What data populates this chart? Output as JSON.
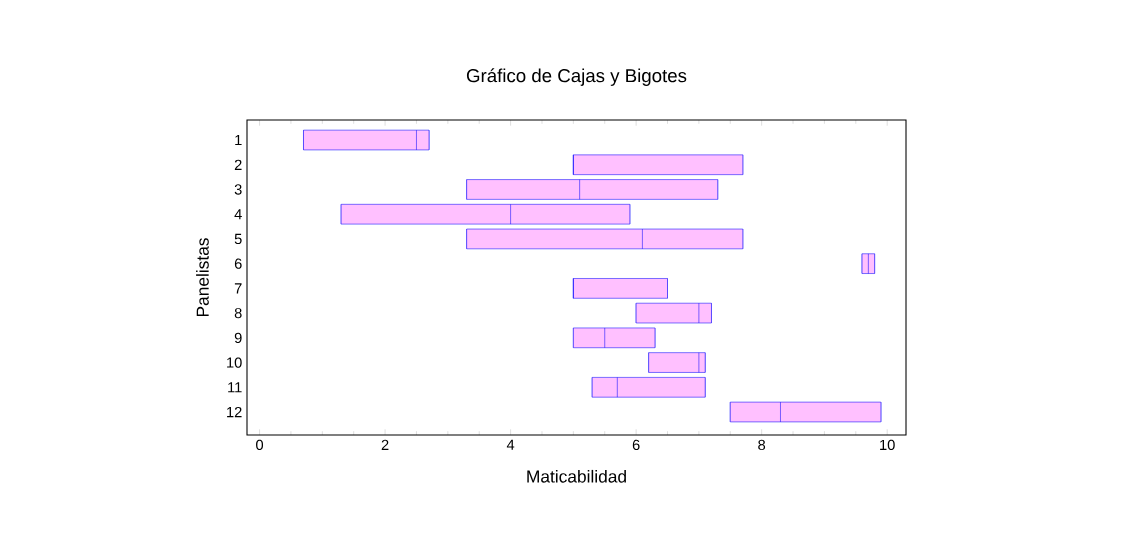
{
  "chart_data": {
    "type": "box",
    "orientation": "horizontal",
    "title": "Gráfico de Cajas y Bigotes",
    "xlabel": "Maticabilidad",
    "ylabel": "Panelistas",
    "categories": [
      "1",
      "2",
      "3",
      "4",
      "5",
      "6",
      "7",
      "8",
      "9",
      "10",
      "11",
      "12"
    ],
    "xlim": [
      -0.2,
      10.3
    ],
    "xticks": [
      0,
      2,
      4,
      6,
      8,
      10
    ],
    "grid": false,
    "series": [
      {
        "color": "#ffc0ff",
        "boxes": [
          {
            "low": 0.7,
            "q1": 0.7,
            "median": 2.5,
            "q3": 2.7,
            "high": 2.7
          },
          {
            "low": 5.0,
            "q1": 5.0,
            "median": 5.0,
            "q3": 7.7,
            "high": 7.7
          },
          {
            "low": 3.3,
            "q1": 3.3,
            "median": 5.1,
            "q3": 7.3,
            "high": 7.3
          },
          {
            "low": 1.3,
            "q1": 1.3,
            "median": 4.0,
            "q3": 5.9,
            "high": 5.9
          },
          {
            "low": 3.3,
            "q1": 3.3,
            "median": 6.1,
            "q3": 7.7,
            "high": 7.7
          },
          {
            "low": 9.6,
            "q1": 9.6,
            "median": 9.7,
            "q3": 9.8,
            "high": 9.8
          },
          {
            "low": 5.0,
            "q1": 5.0,
            "median": 5.0,
            "q3": 6.5,
            "high": 6.5
          },
          {
            "low": 6.0,
            "q1": 6.0,
            "median": 7.0,
            "q3": 7.2,
            "high": 7.2
          },
          {
            "low": 5.0,
            "q1": 5.0,
            "median": 5.5,
            "q3": 6.3,
            "high": 6.3
          },
          {
            "low": 6.2,
            "q1": 6.2,
            "median": 7.0,
            "q3": 7.1,
            "high": 7.1
          },
          {
            "low": 5.3,
            "q1": 5.3,
            "median": 5.7,
            "q3": 7.1,
            "high": 7.1
          },
          {
            "low": 7.5,
            "q1": 7.5,
            "median": 8.3,
            "q3": 9.9,
            "high": 9.9
          }
        ]
      }
    ]
  }
}
